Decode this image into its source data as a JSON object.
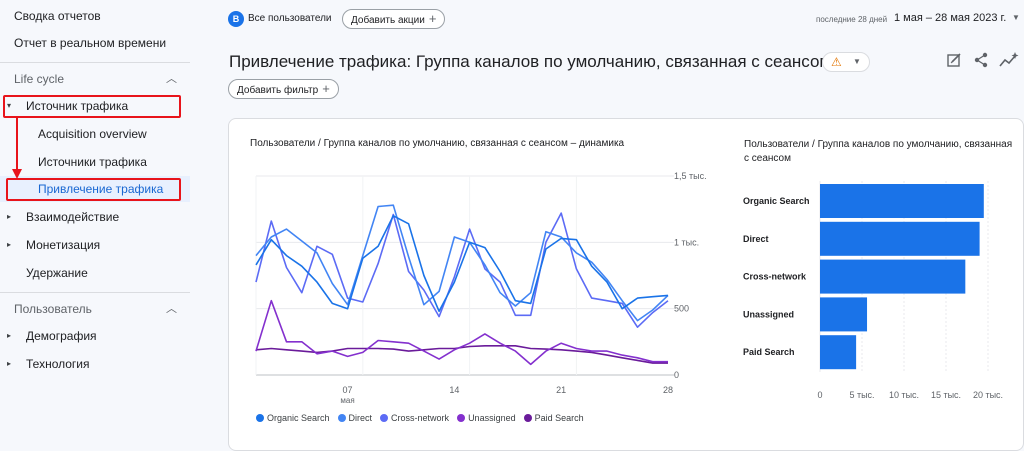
{
  "sidebar": {
    "reports_snapshot": "Сводка отчетов",
    "realtime": "Отчет в реальном времени",
    "lifecycle": {
      "label": "Life cycle",
      "items": [
        {
          "label": "Источник трафика",
          "expanded": true
        },
        {
          "label": "Acquisition overview"
        },
        {
          "label": "Источники трафика"
        },
        {
          "label": "Привлечение трафика",
          "active": true
        },
        {
          "label": "Взаимодействие"
        },
        {
          "label": "Монетизация"
        },
        {
          "label": "Удержание"
        }
      ]
    },
    "user": {
      "label": "Пользователь",
      "items": [
        {
          "label": "Демография"
        },
        {
          "label": "Технология"
        }
      ]
    }
  },
  "topbar": {
    "segment_badge": "В",
    "segment_label": "Все пользователи",
    "add_comparison": "Добавить акции",
    "date_hint": "последние 28 дней",
    "date_range": "1 мая – 28 мая 2023 г."
  },
  "page": {
    "title": "Привлечение трафика: Группа каналов по умолчанию, связанная с сеансом",
    "add_filter": "Добавить фильтр"
  },
  "icons": {
    "warning": "warning-icon",
    "edit": "edit-report-icon",
    "share": "share-icon",
    "insights": "insights-icon"
  },
  "colors": {
    "organic": "#1a73e8",
    "direct": "#4285f4",
    "cross": "#5c6bf5",
    "unassigned": "#8430ce",
    "paid": "#6a1b9a",
    "bar": "#1a73e8",
    "highlight": "#e8141b"
  },
  "chart_data": [
    {
      "type": "line",
      "title": "Пользователи / Группа каналов по умолчанию, связанная с сеансом – динамика",
      "x": [
        1,
        2,
        3,
        4,
        5,
        6,
        7,
        8,
        9,
        10,
        11,
        12,
        13,
        14,
        15,
        16,
        17,
        18,
        19,
        20,
        21,
        22,
        23,
        24,
        25,
        26,
        27,
        28
      ],
      "x_ticks": [
        {
          "value": 7,
          "label": "07",
          "sublabel": "мая"
        },
        {
          "value": 14,
          "label": "14"
        },
        {
          "value": 21,
          "label": "21"
        },
        {
          "value": 28,
          "label": "28"
        }
      ],
      "y_ticks": [
        {
          "value": 0,
          "label": "0"
        },
        {
          "value": 500,
          "label": "500"
        },
        {
          "value": 1000,
          "label": "1 тыс."
        },
        {
          "value": 1500,
          "label": "1,5 тыс."
        }
      ],
      "ylim": [
        0,
        1500
      ],
      "series": [
        {
          "name": "Organic Search",
          "color": "#1a73e8",
          "values": [
            830,
            1020,
            900,
            820,
            700,
            540,
            500,
            880,
            970,
            1200,
            1140,
            750,
            480,
            700,
            1000,
            960,
            780,
            560,
            540,
            950,
            1030,
            1020,
            820,
            700,
            500,
            580,
            590,
            600
          ]
        },
        {
          "name": "Direct",
          "color": "#4285f4",
          "values": [
            900,
            1040,
            1100,
            1010,
            920,
            690,
            530,
            900,
            1270,
            1280,
            890,
            530,
            630,
            1040,
            1000,
            830,
            620,
            520,
            620,
            1080,
            1040,
            920,
            850,
            720,
            560,
            410,
            490,
            600
          ]
        },
        {
          "name": "Cross-network",
          "color": "#5c6bf5",
          "values": [
            700,
            1160,
            810,
            620,
            970,
            910,
            580,
            550,
            840,
            1210,
            780,
            640,
            440,
            740,
            1100,
            800,
            700,
            450,
            450,
            1000,
            1220,
            800,
            580,
            560,
            540,
            360,
            470,
            560
          ]
        },
        {
          "name": "Unassigned",
          "color": "#8430ce",
          "values": [
            180,
            560,
            250,
            250,
            160,
            180,
            140,
            170,
            260,
            250,
            240,
            180,
            120,
            190,
            240,
            310,
            240,
            180,
            80,
            180,
            240,
            200,
            180,
            180,
            150,
            130,
            100,
            100
          ]
        },
        {
          "name": "Paid Search",
          "color": "#6a1b9a",
          "values": [
            190,
            200,
            190,
            180,
            170,
            180,
            200,
            200,
            200,
            195,
            180,
            190,
            200,
            200,
            215,
            220,
            220,
            220,
            200,
            195,
            190,
            180,
            170,
            150,
            130,
            110,
            90,
            90
          ]
        }
      ]
    },
    {
      "type": "bar",
      "orientation": "horizontal",
      "title": "Пользователи / Группа каналов по умолчанию, связанная с сеансом",
      "categories": [
        "Organic Search",
        "Direct",
        "Cross-network",
        "Unassigned",
        "Paid Search"
      ],
      "values": [
        19500,
        19000,
        17300,
        5600,
        4300
      ],
      "x_ticks": [
        {
          "value": 0,
          "label": "0"
        },
        {
          "value": 5000,
          "label": "5 тыс."
        },
        {
          "value": 10000,
          "label": "10 тыс."
        },
        {
          "value": 15000,
          "label": "15 тыс."
        },
        {
          "value": 20000,
          "label": "20 тыс."
        }
      ],
      "xlim": [
        0,
        20000
      ]
    }
  ]
}
